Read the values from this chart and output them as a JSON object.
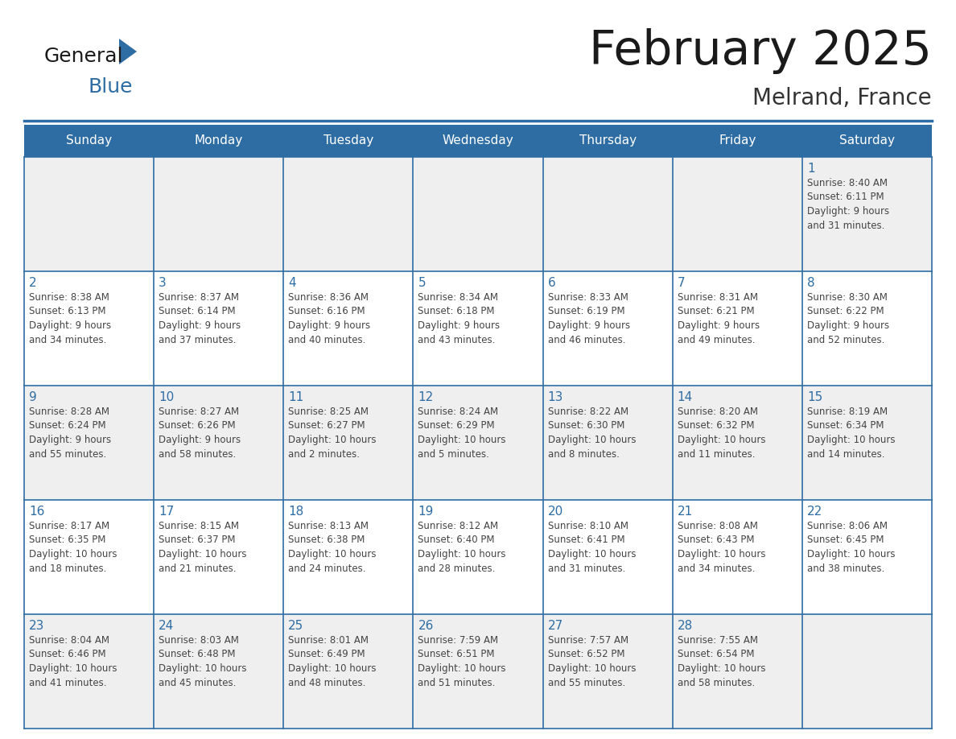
{
  "title": "February 2025",
  "subtitle": "Melrand, France",
  "header_bg": "#2E6DA4",
  "header_text_color": "#FFFFFF",
  "cell_bg_odd": "#EFEFEF",
  "cell_bg_even": "#FFFFFF",
  "separator_color": "#2E6DA4",
  "day_num_color": "#2E6DA4",
  "text_color": "#444444",
  "title_color": "#1a1a1a",
  "subtitle_color": "#333333",
  "logo_general_color": "#1a1a1a",
  "logo_blue_color": "#2E6DA4",
  "logo_triangle_color": "#2E6DA4",
  "days_of_week": [
    "Sunday",
    "Monday",
    "Tuesday",
    "Wednesday",
    "Thursday",
    "Friday",
    "Saturday"
  ],
  "weeks": [
    [
      {
        "day": "",
        "info": ""
      },
      {
        "day": "",
        "info": ""
      },
      {
        "day": "",
        "info": ""
      },
      {
        "day": "",
        "info": ""
      },
      {
        "day": "",
        "info": ""
      },
      {
        "day": "",
        "info": ""
      },
      {
        "day": "1",
        "info": "Sunrise: 8:40 AM\nSunset: 6:11 PM\nDaylight: 9 hours\nand 31 minutes."
      }
    ],
    [
      {
        "day": "2",
        "info": "Sunrise: 8:38 AM\nSunset: 6:13 PM\nDaylight: 9 hours\nand 34 minutes."
      },
      {
        "day": "3",
        "info": "Sunrise: 8:37 AM\nSunset: 6:14 PM\nDaylight: 9 hours\nand 37 minutes."
      },
      {
        "day": "4",
        "info": "Sunrise: 8:36 AM\nSunset: 6:16 PM\nDaylight: 9 hours\nand 40 minutes."
      },
      {
        "day": "5",
        "info": "Sunrise: 8:34 AM\nSunset: 6:18 PM\nDaylight: 9 hours\nand 43 minutes."
      },
      {
        "day": "6",
        "info": "Sunrise: 8:33 AM\nSunset: 6:19 PM\nDaylight: 9 hours\nand 46 minutes."
      },
      {
        "day": "7",
        "info": "Sunrise: 8:31 AM\nSunset: 6:21 PM\nDaylight: 9 hours\nand 49 minutes."
      },
      {
        "day": "8",
        "info": "Sunrise: 8:30 AM\nSunset: 6:22 PM\nDaylight: 9 hours\nand 52 minutes."
      }
    ],
    [
      {
        "day": "9",
        "info": "Sunrise: 8:28 AM\nSunset: 6:24 PM\nDaylight: 9 hours\nand 55 minutes."
      },
      {
        "day": "10",
        "info": "Sunrise: 8:27 AM\nSunset: 6:26 PM\nDaylight: 9 hours\nand 58 minutes."
      },
      {
        "day": "11",
        "info": "Sunrise: 8:25 AM\nSunset: 6:27 PM\nDaylight: 10 hours\nand 2 minutes."
      },
      {
        "day": "12",
        "info": "Sunrise: 8:24 AM\nSunset: 6:29 PM\nDaylight: 10 hours\nand 5 minutes."
      },
      {
        "day": "13",
        "info": "Sunrise: 8:22 AM\nSunset: 6:30 PM\nDaylight: 10 hours\nand 8 minutes."
      },
      {
        "day": "14",
        "info": "Sunrise: 8:20 AM\nSunset: 6:32 PM\nDaylight: 10 hours\nand 11 minutes."
      },
      {
        "day": "15",
        "info": "Sunrise: 8:19 AM\nSunset: 6:34 PM\nDaylight: 10 hours\nand 14 minutes."
      }
    ],
    [
      {
        "day": "16",
        "info": "Sunrise: 8:17 AM\nSunset: 6:35 PM\nDaylight: 10 hours\nand 18 minutes."
      },
      {
        "day": "17",
        "info": "Sunrise: 8:15 AM\nSunset: 6:37 PM\nDaylight: 10 hours\nand 21 minutes."
      },
      {
        "day": "18",
        "info": "Sunrise: 8:13 AM\nSunset: 6:38 PM\nDaylight: 10 hours\nand 24 minutes."
      },
      {
        "day": "19",
        "info": "Sunrise: 8:12 AM\nSunset: 6:40 PM\nDaylight: 10 hours\nand 28 minutes."
      },
      {
        "day": "20",
        "info": "Sunrise: 8:10 AM\nSunset: 6:41 PM\nDaylight: 10 hours\nand 31 minutes."
      },
      {
        "day": "21",
        "info": "Sunrise: 8:08 AM\nSunset: 6:43 PM\nDaylight: 10 hours\nand 34 minutes."
      },
      {
        "day": "22",
        "info": "Sunrise: 8:06 AM\nSunset: 6:45 PM\nDaylight: 10 hours\nand 38 minutes."
      }
    ],
    [
      {
        "day": "23",
        "info": "Sunrise: 8:04 AM\nSunset: 6:46 PM\nDaylight: 10 hours\nand 41 minutes."
      },
      {
        "day": "24",
        "info": "Sunrise: 8:03 AM\nSunset: 6:48 PM\nDaylight: 10 hours\nand 45 minutes."
      },
      {
        "day": "25",
        "info": "Sunrise: 8:01 AM\nSunset: 6:49 PM\nDaylight: 10 hours\nand 48 minutes."
      },
      {
        "day": "26",
        "info": "Sunrise: 7:59 AM\nSunset: 6:51 PM\nDaylight: 10 hours\nand 51 minutes."
      },
      {
        "day": "27",
        "info": "Sunrise: 7:57 AM\nSunset: 6:52 PM\nDaylight: 10 hours\nand 55 minutes."
      },
      {
        "day": "28",
        "info": "Sunrise: 7:55 AM\nSunset: 6:54 PM\nDaylight: 10 hours\nand 58 minutes."
      },
      {
        "day": "",
        "info": ""
      }
    ]
  ]
}
